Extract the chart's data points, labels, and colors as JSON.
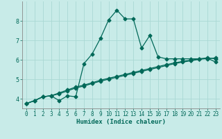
{
  "xlabel": "Humidex (Indice chaleur)",
  "bg_color": "#c8ebe8",
  "grid_color": "#aad8d4",
  "line_color": "#006858",
  "xlim": [
    -0.5,
    23.5
  ],
  "ylim": [
    3.5,
    9.0
  ],
  "xticks": [
    0,
    1,
    2,
    3,
    4,
    5,
    6,
    7,
    8,
    9,
    10,
    11,
    12,
    13,
    14,
    15,
    16,
    17,
    18,
    19,
    20,
    21,
    22,
    23
  ],
  "yticks": [
    4,
    5,
    6,
    7,
    8
  ],
  "line1_x": [
    0,
    1,
    2,
    3,
    4,
    5,
    6,
    7,
    8,
    9,
    10,
    11,
    12,
    13,
    14,
    15,
    16,
    17,
    18,
    19,
    20,
    21,
    22,
    23
  ],
  "line1_y": [
    3.75,
    3.9,
    4.1,
    4.15,
    4.25,
    4.4,
    4.55,
    4.65,
    4.78,
    4.9,
    5.0,
    5.1,
    5.2,
    5.3,
    5.4,
    5.5,
    5.6,
    5.7,
    5.8,
    5.88,
    5.95,
    6.02,
    6.08,
    5.88
  ],
  "line2_x": [
    0,
    1,
    2,
    3,
    4,
    5,
    6,
    7,
    8,
    9,
    10,
    11,
    12,
    13,
    14,
    15,
    16,
    17,
    18,
    19,
    20,
    21,
    22,
    23
  ],
  "line2_y": [
    3.75,
    3.9,
    4.1,
    4.15,
    4.3,
    4.45,
    4.6,
    4.7,
    4.82,
    4.95,
    5.05,
    5.15,
    5.25,
    5.35,
    5.45,
    5.55,
    5.65,
    5.75,
    5.84,
    5.92,
    5.98,
    6.05,
    6.1,
    6.05
  ],
  "line3_x": [
    0,
    1,
    2,
    3,
    4,
    5,
    6,
    7,
    8,
    9,
    10,
    11,
    12,
    13,
    14,
    15,
    16,
    17,
    18,
    19,
    20,
    21,
    22,
    23
  ],
  "line3_y": [
    3.75,
    3.9,
    4.1,
    4.15,
    3.9,
    4.15,
    4.1,
    5.8,
    6.3,
    7.1,
    8.05,
    8.55,
    8.1,
    8.1,
    6.6,
    7.25,
    6.15,
    6.05,
    6.05,
    6.05,
    6.05,
    6.05,
    6.05,
    6.1
  ]
}
